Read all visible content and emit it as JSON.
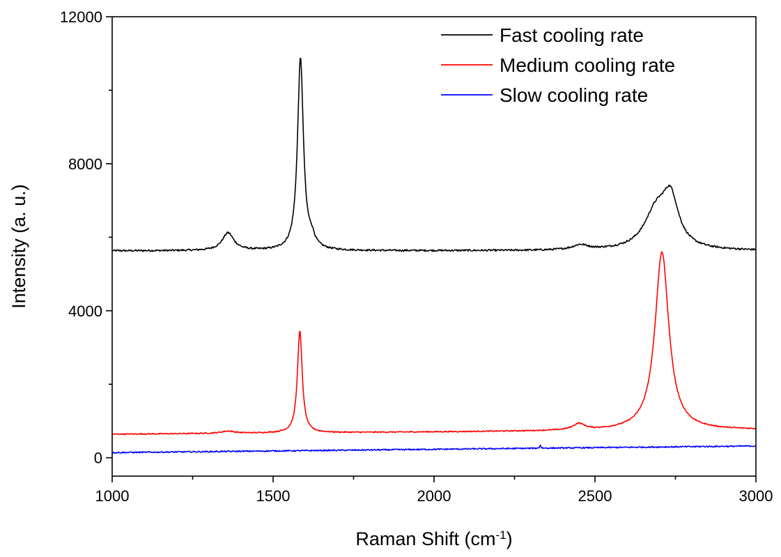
{
  "chart_data": {
    "type": "line",
    "title": "",
    "xlabel": "Raman Shift (cm",
    "xlabel_sup": "-1",
    "xlabel_suffix": ")",
    "ylabel": "Intensity (a. u.)",
    "xlim": [
      1000,
      3000
    ],
    "ylim": [
      -500,
      12000
    ],
    "xticks": [
      1000,
      1500,
      2000,
      2500,
      3000
    ],
    "xticks_minor": [
      1250,
      1750,
      2250,
      2750
    ],
    "yticks": [
      0,
      4000,
      8000,
      12000
    ],
    "yticks_minor": [
      2000,
      6000,
      10000
    ],
    "grid": false,
    "legend_position": "top-right",
    "series": [
      {
        "name": "Fast cooling rate",
        "color": "#000000",
        "baseline": 5630,
        "peaks": [
          {
            "center": 1360,
            "height": 480,
            "width": 22
          },
          {
            "center": 1585,
            "height": 5230,
            "width": 11
          },
          {
            "center": 1620,
            "height": 250,
            "width": 12
          },
          {
            "center": 2455,
            "height": 130,
            "width": 30
          },
          {
            "center": 2690,
            "height": 1000,
            "width": 45
          },
          {
            "center": 2735,
            "height": 1250,
            "width": 30
          }
        ],
        "noise": 25
      },
      {
        "name": "Medium cooling rate",
        "color": "#ff0000",
        "baseline": 640,
        "baseline_slope_per_1000": 60,
        "peaks": [
          {
            "center": 1360,
            "height": 60,
            "width": 25
          },
          {
            "center": 1583,
            "height": 2780,
            "width": 9
          },
          {
            "center": 2450,
            "height": 170,
            "width": 22
          },
          {
            "center": 2708,
            "height": 4850,
            "width": 26
          }
        ],
        "noise": 15
      },
      {
        "name": "Slow cooling rate",
        "color": "#0000ff",
        "baseline": 140,
        "baseline_slope_per_1000": 90,
        "peaks": [
          {
            "center": 2330,
            "height": 90,
            "width": 2
          }
        ],
        "noise": 18
      }
    ]
  }
}
